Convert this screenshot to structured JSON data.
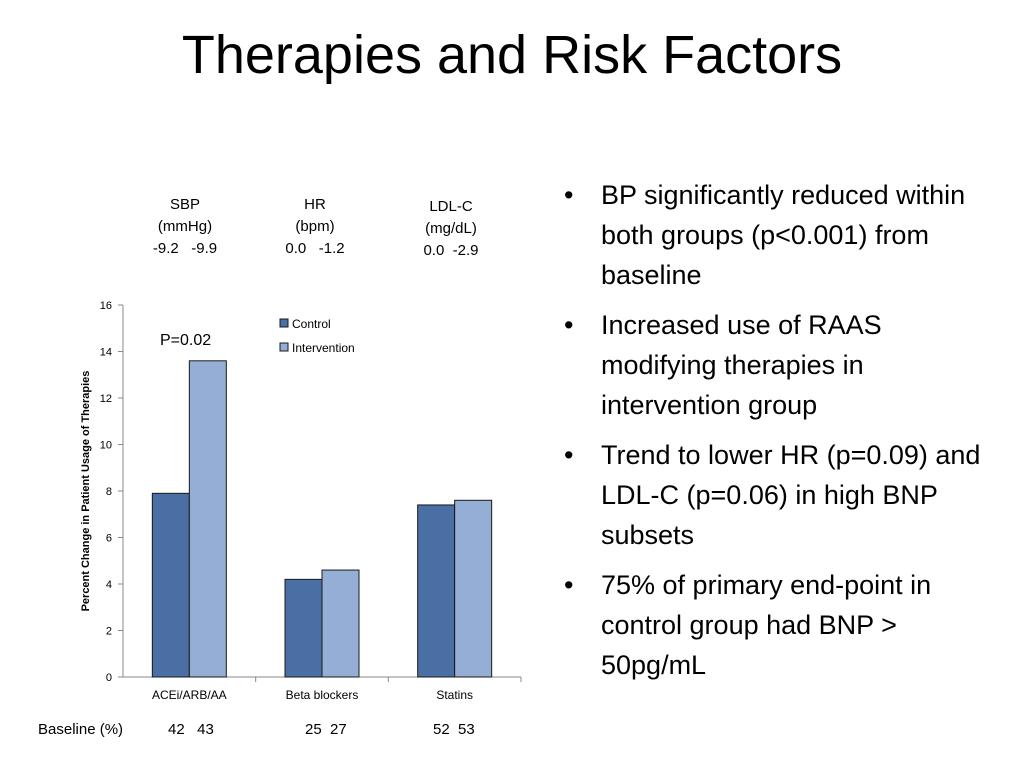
{
  "slide": {
    "title": "Therapies and Risk Factors"
  },
  "risk_factors": [
    {
      "name": "SBP",
      "unit": "(mmHg)",
      "values": "-9.2   -9.9"
    },
    {
      "name": "HR",
      "unit": "(bpm)",
      "values": "0.0   -1.2"
    },
    {
      "name": "LDL-C",
      "unit": "(mg/dL)",
      "values": "0.0  -2.9"
    }
  ],
  "bullets": [
    "BP significantly reduced within both groups (p<0.001) from baseline",
    "Increased use of RAAS modifying therapies in intervention group",
    "Trend to lower HR (p=0.09) and LDL-C (p=0.06) in high BNP subsets",
    "75% of primary end-point in control group had BNP > 50pg/mL"
  ],
  "baseline": {
    "label": "Baseline (%)",
    "values": [
      "42   43",
      "25  27",
      "52  53"
    ]
  },
  "chart_data": {
    "type": "bar",
    "categories": [
      "ACEi/ARB/AA",
      "Beta blockers",
      "Statins"
    ],
    "series": [
      {
        "name": "Control",
        "values": [
          7.9,
          4.2,
          7.4
        ],
        "color": "#4a6fa5"
      },
      {
        "name": "Intervention",
        "values": [
          13.6,
          4.6,
          7.6
        ],
        "color": "#95aed6"
      }
    ],
    "ylabel": "Percent Change in Patient Usage of Therapies",
    "xlabel": "",
    "ylim": [
      0,
      16
    ],
    "yticks": [
      0,
      2,
      4,
      6,
      8,
      10,
      12,
      14,
      16
    ],
    "grid": false,
    "legend_position": "top-right",
    "annotation": "P=0.02"
  }
}
